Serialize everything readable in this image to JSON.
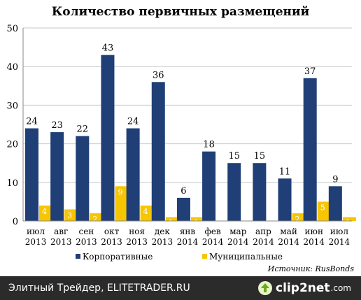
{
  "chart_data": {
    "type": "bar",
    "title": "Количество первичных размещений",
    "categories": [
      [
        "июл",
        "2013"
      ],
      [
        "авг",
        "2013"
      ],
      [
        "сен",
        "2013"
      ],
      [
        "окт",
        "2013"
      ],
      [
        "ноя",
        "2013"
      ],
      [
        "дек",
        "2013"
      ],
      [
        "янв",
        "2014"
      ],
      [
        "фев",
        "2014"
      ],
      [
        "мар",
        "2014"
      ],
      [
        "апр",
        "2014"
      ],
      [
        "май",
        "2014"
      ],
      [
        "июн",
        "2014"
      ],
      [
        "июл",
        "2014"
      ]
    ],
    "series": [
      {
        "name": "Корпоративные",
        "color": "#1f3f76",
        "values": [
          24,
          23,
          22,
          43,
          24,
          36,
          6,
          18,
          15,
          15,
          11,
          37,
          9
        ]
      },
      {
        "name": "Муниципальные",
        "color": "#f7c600",
        "values": [
          4,
          3,
          2,
          9,
          4,
          1,
          1,
          0,
          0,
          0,
          2,
          5,
          1
        ]
      }
    ],
    "ylim": [
      0,
      50
    ],
    "yticks": [
      0,
      10,
      20,
      30,
      40,
      50
    ],
    "grid": true,
    "legend_position": "bottom",
    "source_note": "Источник: RusBonds"
  },
  "footer": {
    "caption": "Элитный Трейдер, ELITETRADER.RU",
    "logo_text": "clip2net",
    "logo_suffix": ".com"
  }
}
